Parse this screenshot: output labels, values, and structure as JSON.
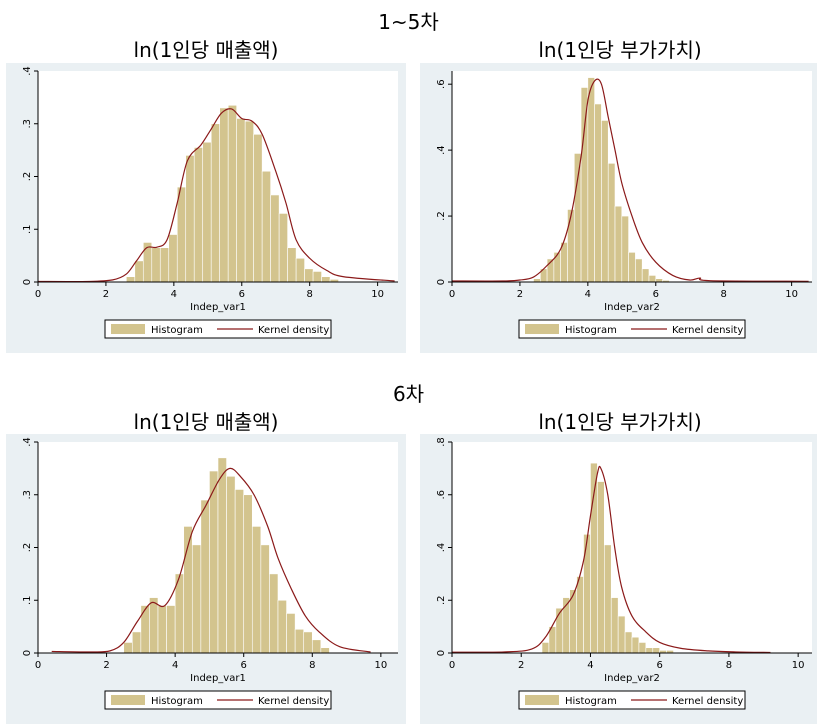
{
  "figure": {
    "sections": [
      {
        "title": "1~5차"
      },
      {
        "title": "6차"
      }
    ]
  },
  "colors": {
    "panel_bg": "#eaf0f3",
    "bar_fill": "#d3c48e",
    "bar_stroke": "#ffffff",
    "density_line": "#8b1a1a"
  },
  "chart_data": [
    {
      "type": "bar",
      "title": "ln(1인당 매출액)",
      "xlabel": "Indep_var1",
      "ylabel": "",
      "xlim": [
        0,
        10.6
      ],
      "ylim": [
        0,
        0.4
      ],
      "xticks": [
        "0",
        "2",
        "4",
        "6",
        "8",
        "10"
      ],
      "xtick_values": [
        0,
        2,
        4,
        6,
        8,
        10
      ],
      "yticks": [
        "0",
        ".1",
        ".2",
        ".3",
        ".4"
      ],
      "ytick_values": [
        0,
        0.1,
        0.2,
        0.3,
        0.4
      ],
      "legend": [
        "Histogram",
        "Kernel density"
      ],
      "bin_start": 2.6,
      "bin_width": 0.25,
      "values": [
        0.01,
        0.04,
        0.075,
        0.065,
        0.065,
        0.09,
        0.18,
        0.24,
        0.255,
        0.265,
        0.3,
        0.33,
        0.335,
        0.31,
        0.305,
        0.28,
        0.21,
        0.165,
        0.13,
        0.065,
        0.045,
        0.025,
        0.02,
        0.01,
        0.005
      ],
      "density": [
        [
          0,
          0.001
        ],
        [
          1.5,
          0.001
        ],
        [
          2.2,
          0.004
        ],
        [
          2.6,
          0.015
        ],
        [
          2.9,
          0.04
        ],
        [
          3.2,
          0.065
        ],
        [
          3.5,
          0.066
        ],
        [
          3.8,
          0.08
        ],
        [
          4.1,
          0.15
        ],
        [
          4.4,
          0.23
        ],
        [
          4.8,
          0.26
        ],
        [
          5.1,
          0.29
        ],
        [
          5.4,
          0.32
        ],
        [
          5.7,
          0.328
        ],
        [
          6.0,
          0.31
        ],
        [
          6.3,
          0.305
        ],
        [
          6.6,
          0.28
        ],
        [
          7.0,
          0.21
        ],
        [
          7.3,
          0.15
        ],
        [
          7.6,
          0.08
        ],
        [
          8.0,
          0.045
        ],
        [
          8.5,
          0.022
        ],
        [
          9.0,
          0.01
        ],
        [
          10.5,
          0.002
        ]
      ]
    },
    {
      "type": "bar",
      "title": "ln(1인당 부가가치)",
      "xlabel": "Indep_var2",
      "ylabel": "",
      "xlim": [
        0,
        10.6
      ],
      "ylim": [
        0,
        0.64
      ],
      "xticks": [
        "0",
        "2",
        "4",
        "6",
        "8",
        "10"
      ],
      "xtick_values": [
        0,
        2,
        4,
        6,
        8,
        10
      ],
      "yticks": [
        "0",
        ".2",
        ".4",
        ".6"
      ],
      "ytick_values": [
        0,
        0.2,
        0.4,
        0.6
      ],
      "legend": [
        "Histogram",
        "Kernel density"
      ],
      "bin_start": 2.4,
      "bin_width": 0.2,
      "values": [
        0.01,
        0.04,
        0.07,
        0.09,
        0.12,
        0.22,
        0.39,
        0.59,
        0.62,
        0.54,
        0.49,
        0.36,
        0.23,
        0.2,
        0.09,
        0.07,
        0.04,
        0.02,
        0.01,
        0.005
      ],
      "density": [
        [
          0,
          0.003
        ],
        [
          1.5,
          0.003
        ],
        [
          2.0,
          0.006
        ],
        [
          2.4,
          0.015
        ],
        [
          2.8,
          0.05
        ],
        [
          3.2,
          0.1
        ],
        [
          3.5,
          0.2
        ],
        [
          3.8,
          0.38
        ],
        [
          4.0,
          0.55
        ],
        [
          4.2,
          0.61
        ],
        [
          4.4,
          0.6
        ],
        [
          4.6,
          0.5
        ],
        [
          4.8,
          0.4
        ],
        [
          5.0,
          0.3
        ],
        [
          5.3,
          0.2
        ],
        [
          5.6,
          0.12
        ],
        [
          6.0,
          0.06
        ],
        [
          6.5,
          0.02
        ],
        [
          7.0,
          0.006
        ],
        [
          7.3,
          0.012
        ],
        [
          7.6,
          0.004
        ],
        [
          10.5,
          0.002
        ]
      ]
    },
    {
      "type": "bar",
      "title": "ln(1인당 매출액)",
      "xlabel": "Indep_var1",
      "ylabel": "",
      "xlim": [
        0,
        10.5
      ],
      "ylim": [
        0,
        0.4
      ],
      "xticks": [
        "0",
        "2",
        "4",
        "6",
        "8",
        "10"
      ],
      "xtick_values": [
        0,
        2,
        4,
        6,
        8,
        10
      ],
      "yticks": [
        "0",
        ".1",
        ".2",
        ".3",
        ".4"
      ],
      "ytick_values": [
        0,
        0.1,
        0.2,
        0.3,
        0.4
      ],
      "legend": [
        "Histogram",
        "Kernel density"
      ],
      "bin_start": 2.5,
      "bin_width": 0.25,
      "values": [
        0.02,
        0.04,
        0.09,
        0.105,
        0.09,
        0.09,
        0.15,
        0.24,
        0.205,
        0.29,
        0.345,
        0.37,
        0.335,
        0.31,
        0.3,
        0.24,
        0.205,
        0.15,
        0.1,
        0.075,
        0.045,
        0.04,
        0.025,
        0.01
      ],
      "density": [
        [
          0.4,
          0.003
        ],
        [
          1.5,
          0.002
        ],
        [
          2.1,
          0.004
        ],
        [
          2.5,
          0.02
        ],
        [
          2.9,
          0.06
        ],
        [
          3.3,
          0.095
        ],
        [
          3.7,
          0.09
        ],
        [
          4.1,
          0.14
        ],
        [
          4.5,
          0.23
        ],
        [
          4.9,
          0.28
        ],
        [
          5.3,
          0.33
        ],
        [
          5.6,
          0.35
        ],
        [
          5.9,
          0.335
        ],
        [
          6.3,
          0.3
        ],
        [
          6.7,
          0.24
        ],
        [
          7.0,
          0.18
        ],
        [
          7.4,
          0.12
        ],
        [
          7.8,
          0.07
        ],
        [
          8.2,
          0.04
        ],
        [
          8.8,
          0.012
        ],
        [
          9.7,
          0.002
        ]
      ]
    },
    {
      "type": "bar",
      "title": "ln(1인당 부가가치)",
      "xlabel": "Indep_var2",
      "ylabel": "",
      "xlim": [
        0,
        10.4
      ],
      "ylim": [
        0,
        0.8
      ],
      "xticks": [
        "0",
        "2",
        "4",
        "6",
        "8",
        "10"
      ],
      "xtick_values": [
        0,
        2,
        4,
        6,
        8,
        10
      ],
      "yticks": [
        "0",
        ".2",
        ".4",
        ".6",
        ".8"
      ],
      "ytick_values": [
        0,
        0.2,
        0.4,
        0.6,
        0.8
      ],
      "legend": [
        "Histogram",
        "Kernel density"
      ],
      "bin_start": 2.6,
      "bin_width": 0.2,
      "values": [
        0.04,
        0.1,
        0.17,
        0.21,
        0.24,
        0.29,
        0.45,
        0.72,
        0.65,
        0.41,
        0.21,
        0.14,
        0.08,
        0.06,
        0.04,
        0.02,
        0.02,
        0.01,
        0.01
      ],
      "density": [
        [
          0,
          0.003
        ],
        [
          1.5,
          0.004
        ],
        [
          2.3,
          0.015
        ],
        [
          2.7,
          0.06
        ],
        [
          3.1,
          0.15
        ],
        [
          3.5,
          0.22
        ],
        [
          3.8,
          0.35
        ],
        [
          4.0,
          0.52
        ],
        [
          4.2,
          0.68
        ],
        [
          4.3,
          0.7
        ],
        [
          4.5,
          0.6
        ],
        [
          4.7,
          0.4
        ],
        [
          4.9,
          0.25
        ],
        [
          5.2,
          0.14
        ],
        [
          5.6,
          0.08
        ],
        [
          6.0,
          0.04
        ],
        [
          6.6,
          0.018
        ],
        [
          7.4,
          0.008
        ],
        [
          8.2,
          0.004
        ],
        [
          9.2,
          0.002
        ]
      ]
    }
  ]
}
